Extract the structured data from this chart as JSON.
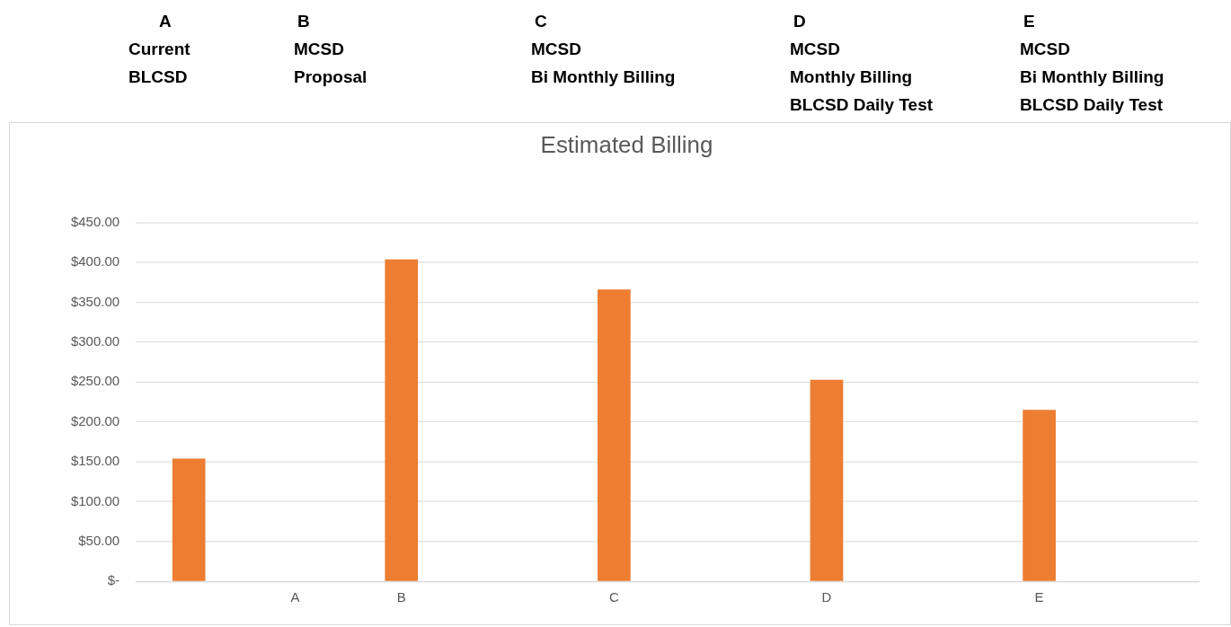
{
  "chart_data": {
    "type": "bar",
    "title": "Estimated Billing",
    "categories": [
      null,
      "A",
      "B",
      null,
      "C",
      null,
      "D",
      null,
      "E",
      null
    ],
    "values": [
      154,
      null,
      404,
      null,
      366,
      null,
      253,
      null,
      215,
      null
    ],
    "color": "#ed7d31",
    "ylim": [
      0,
      450
    ],
    "yticks": [
      {
        "value": 0,
        "label": "$-"
      },
      {
        "value": 50,
        "label": "$50.00"
      },
      {
        "value": 100,
        "label": "$100.00"
      },
      {
        "value": 150,
        "label": "$150.00"
      },
      {
        "value": 200,
        "label": "$200.00"
      },
      {
        "value": 250,
        "label": "$250.00"
      },
      {
        "value": 300,
        "label": "$300.00"
      },
      {
        "value": 350,
        "label": "$350.00"
      },
      {
        "value": 400,
        "label": "$400.00"
      },
      {
        "value": 450,
        "label": "$450.00"
      }
    ],
    "grid": "y",
    "legend": false,
    "annotations": [
      "A\nCurrent\nBLCSD",
      "B\nMCSD\nProposal",
      "C\nMCSD\nBi Monthly Billing",
      "D\nMCSD\nMonthly Billing\nBLCSD Daily Test",
      "E\nMCSD\nBi Monthly Billing\nBLCSD Daily Test"
    ]
  }
}
